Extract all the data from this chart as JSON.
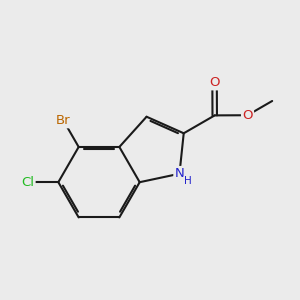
{
  "background_color": "#ebebeb",
  "bond_color": "#1a1a1a",
  "atom_colors": {
    "Br": "#bb6600",
    "Cl": "#22bb22",
    "N": "#2222cc",
    "O": "#cc2222",
    "C": "#1a1a1a"
  },
  "bond_lw": 1.5,
  "dbo": 0.055,
  "figsize": [
    3.0,
    3.0
  ],
  "dpi": 100
}
